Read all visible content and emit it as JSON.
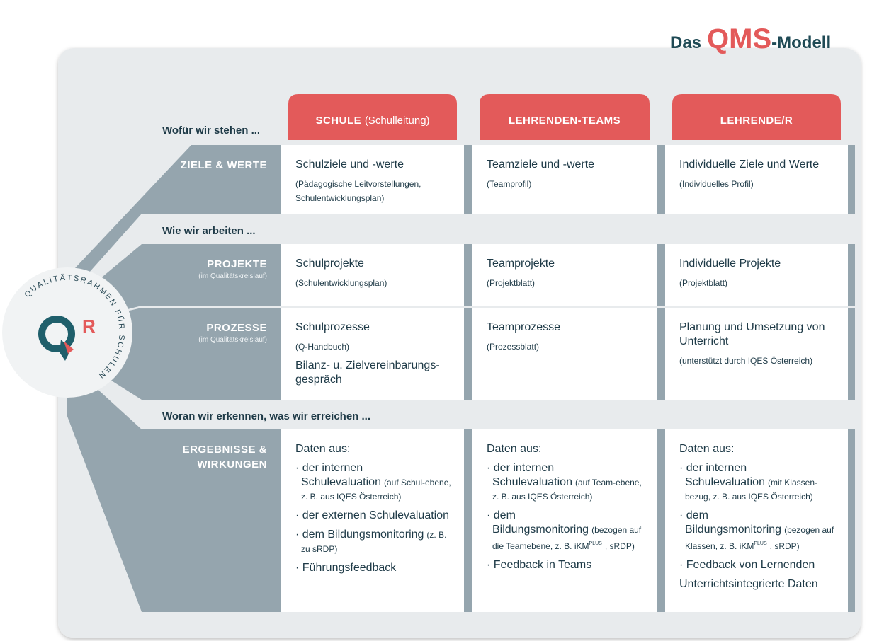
{
  "title": {
    "prefix": "Das",
    "brand": "QMS",
    "suffix": "-Modell"
  },
  "columns": [
    {
      "title": "SCHULE",
      "note": "(Schulleitung)"
    },
    {
      "title": "LEHRENDEN-TEAMS"
    },
    {
      "title": "LEHRENDE/R"
    }
  ],
  "sections": [
    "Wofür wir stehen ...",
    "Wie wir arbeiten ...",
    "Woran wir erkennen, was wir erreichen ..."
  ],
  "rows": [
    {
      "label": "ZIELE & WERTE",
      "cells": [
        [
          {
            "runs": [
              {
                "text": "Schulziele und -werte",
                "style": "main"
              }
            ]
          },
          {
            "runs": [
              {
                "text": "(Pädagogische Leitvorstellungen, Schulentwicklungsplan)",
                "style": "note"
              }
            ]
          }
        ],
        [
          {
            "runs": [
              {
                "text": "Teamziele und -werte",
                "style": "main"
              }
            ]
          },
          {
            "runs": [
              {
                "text": "(Teamprofil)",
                "style": "note"
              }
            ]
          }
        ],
        [
          {
            "runs": [
              {
                "text": "Individuelle Ziele und Werte",
                "style": "main"
              }
            ]
          },
          {
            "runs": [
              {
                "text": "(Individuelles Profil)",
                "style": "note"
              }
            ]
          }
        ]
      ]
    },
    {
      "label": "PROJEKTE",
      "note": "(im Qualitätskreislauf)",
      "cells": [
        [
          {
            "runs": [
              {
                "text": "Schulprojekte",
                "style": "main"
              }
            ]
          },
          {
            "runs": [
              {
                "text": "(Schulentwicklungsplan)",
                "style": "note"
              }
            ]
          }
        ],
        [
          {
            "runs": [
              {
                "text": "Teamprojekte",
                "style": "main"
              }
            ]
          },
          {
            "runs": [
              {
                "text": "(Projektblatt)",
                "style": "note"
              }
            ]
          }
        ],
        [
          {
            "runs": [
              {
                "text": "Individuelle Projekte",
                "style": "main"
              }
            ]
          },
          {
            "runs": [
              {
                "text": "(Projektblatt)",
                "style": "note"
              }
            ]
          }
        ]
      ]
    },
    {
      "label": "PROZESSE",
      "note": "(im Qualitätskreislauf)",
      "cells": [
        [
          {
            "runs": [
              {
                "text": "Schulprozesse",
                "style": "main"
              }
            ]
          },
          {
            "runs": [
              {
                "text": "(Q-Handbuch)",
                "style": "note"
              }
            ]
          },
          {
            "runs": [
              {
                "text": "Bilanz- u. Zielvereinbarungs-gespräch",
                "style": "main"
              }
            ]
          }
        ],
        [
          {
            "runs": [
              {
                "text": "Teamprozesse",
                "style": "main"
              }
            ]
          },
          {
            "runs": [
              {
                "text": "(Prozessblatt)",
                "style": "note"
              }
            ]
          }
        ],
        [
          {
            "runs": [
              {
                "text": "Planung und Umsetzung von Unterricht",
                "style": "main"
              }
            ]
          },
          {
            "runs": [
              {
                "text": "(unterstützt durch IQES Österreich)",
                "style": "note"
              }
            ]
          }
        ]
      ]
    },
    {
      "label": "ERGEBNISSE & WIRKUNGEN",
      "cells": [
        [
          {
            "runs": [
              {
                "text": "Daten aus:",
                "style": "main"
              }
            ]
          },
          {
            "bullet": true,
            "runs": [
              {
                "text": "· der internen Schulevaluation",
                "style": "main"
              },
              {
                "text": "(auf Schul-ebene, z. B. aus IQES Österreich)",
                "style": "note"
              }
            ]
          },
          {
            "bullet": true,
            "runs": [
              {
                "text": "· der externen Schulevaluation",
                "style": "main"
              }
            ]
          },
          {
            "bullet": true,
            "runs": [
              {
                "text": "· dem Bildungsmonitoring",
                "style": "main"
              },
              {
                "text": "(z. B. zu sRDP)",
                "style": "note"
              }
            ]
          },
          {
            "bullet": true,
            "runs": [
              {
                "text": "· Führungsfeedback",
                "style": "main"
              }
            ]
          }
        ],
        [
          {
            "runs": [
              {
                "text": "Daten aus:",
                "style": "main"
              }
            ]
          },
          {
            "bullet": true,
            "runs": [
              {
                "text": "· der internen Schulevaluation",
                "style": "main"
              },
              {
                "text": "(auf Team-ebene, z. B. aus IQES Österreich)",
                "style": "note"
              }
            ]
          },
          {
            "bullet": true,
            "runs": [
              {
                "text": "· dem Bildungsmonitoring",
                "style": "main"
              },
              {
                "text": "(bezogen auf die Teamebene, z. B. iKM",
                "style": "note"
              },
              {
                "text": "PLUS",
                "style": "sup"
              },
              {
                "text": ", sRDP)",
                "style": "note"
              }
            ]
          },
          {
            "bullet": true,
            "runs": [
              {
                "text": "· Feedback in Teams",
                "style": "main"
              }
            ]
          }
        ],
        [
          {
            "runs": [
              {
                "text": "Daten aus:",
                "style": "main"
              }
            ]
          },
          {
            "bullet": true,
            "runs": [
              {
                "text": "· der internen Schulevaluation",
                "style": "main"
              },
              {
                "text": "(mit Klassen-bezug, z. B. aus IQES Österreich)",
                "style": "note"
              }
            ]
          },
          {
            "bullet": true,
            "runs": [
              {
                "text": "· dem Bildungsmonitoring",
                "style": "main"
              },
              {
                "text": "(bezogen auf Klassen, z. B. iKM",
                "style": "note"
              },
              {
                "text": "PLUS",
                "style": "sup"
              },
              {
                "text": ", sRDP)",
                "style": "note"
              }
            ]
          },
          {
            "bullet": true,
            "runs": [
              {
                "text": "· Feedback von Lernenden",
                "style": "main"
              }
            ]
          },
          {
            "runs": [
              {
                "text": "Unterrichtsintegrierte Daten",
                "style": "main"
              }
            ]
          }
        ]
      ]
    }
  ],
  "badge": {
    "ring": "QUALITÄTSRAHMEN FÜR SCHULEN",
    "letter": "R"
  }
}
